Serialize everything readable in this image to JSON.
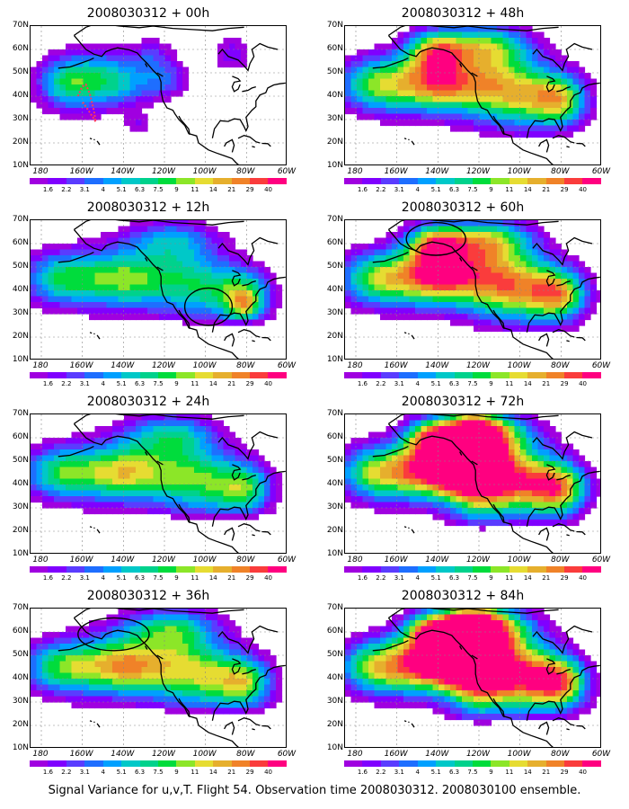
{
  "footer": "Signal Variance for u,v,T. Flight 54. Observation time 2008030312. 2008030100 ensemble.",
  "y_axis_labels": [
    "70N",
    "60N",
    "50N",
    "40N",
    "30N",
    "20N",
    "10N"
  ],
  "x_axis_labels": [
    "180",
    "160W",
    "140W",
    "120W",
    "100W",
    "80W",
    "60W"
  ],
  "colorbar": {
    "labels": [
      "1.6",
      "2.2",
      "3.1",
      "4",
      "5.1",
      "6.3",
      "7.5",
      "9",
      "11",
      "14",
      "21",
      "29",
      "40"
    ],
    "colors": [
      "#a000e0",
      "#8000ff",
      "#5a3cff",
      "#1e6eff",
      "#00a0ff",
      "#00c8c8",
      "#00d28c",
      "#00dc3c",
      "#8ce628",
      "#e6dc32",
      "#e6af2d",
      "#f08228",
      "#fa3c3c",
      "#ff0080"
    ]
  },
  "panels": [
    {
      "id": "p00",
      "title": "2008030312 + 00h",
      "lead_hours": 0
    },
    {
      "id": "p48",
      "title": "2008030312 + 48h",
      "lead_hours": 48
    },
    {
      "id": "p12",
      "title": "2008030312 + 12h",
      "lead_hours": 12
    },
    {
      "id": "p60",
      "title": "2008030312 + 60h",
      "lead_hours": 60
    },
    {
      "id": "p24",
      "title": "2008030312 + 24h",
      "lead_hours": 24
    },
    {
      "id": "p72",
      "title": "2008030312 + 72h",
      "lead_hours": 72
    },
    {
      "id": "p36",
      "title": "2008030312 + 36h",
      "lead_hours": 36
    },
    {
      "id": "p84",
      "title": "2008030312 + 84h",
      "lead_hours": 84
    }
  ]
}
